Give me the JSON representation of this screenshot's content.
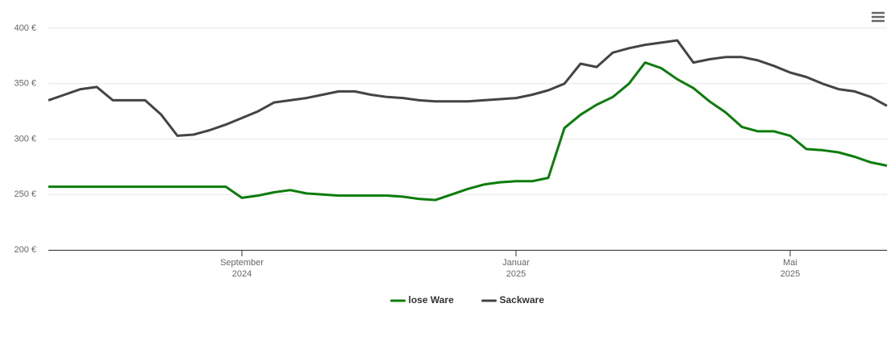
{
  "chart_data": {
    "type": "line",
    "categories": [
      null,
      null,
      null,
      null,
      null,
      null,
      null,
      null,
      null,
      null,
      null,
      null,
      "September 2024",
      null,
      null,
      null,
      null,
      null,
      null,
      null,
      null,
      null,
      null,
      null,
      null,
      null,
      null,
      null,
      null,
      "Januar 2025",
      null,
      null,
      null,
      null,
      null,
      null,
      null,
      null,
      null,
      null,
      null,
      null,
      null,
      null,
      null,
      null,
      "Mai 2025",
      null,
      null,
      null,
      null,
      null,
      null
    ],
    "series": [
      {
        "name": "lose Ware",
        "color": "#0c7c0c",
        "values": [
          257,
          257,
          257,
          257,
          257,
          257,
          257,
          257,
          257,
          257,
          257,
          257,
          247,
          249,
          252,
          254,
          251,
          250,
          249,
          249,
          249,
          249,
          248,
          246,
          245,
          250,
          255,
          259,
          261,
          262,
          262,
          265,
          310,
          322,
          331,
          338,
          350,
          369,
          364,
          354,
          346,
          334,
          324,
          311,
          307,
          307,
          303,
          291,
          290,
          288,
          284,
          279,
          276
        ]
      },
      {
        "name": "Sackware",
        "color": "#434348",
        "values": [
          335,
          340,
          345,
          347,
          335,
          335,
          335,
          322,
          303,
          304,
          308,
          313,
          319,
          325,
          333,
          335,
          337,
          340,
          343,
          343,
          340,
          338,
          337,
          335,
          334,
          334,
          334,
          335,
          336,
          337,
          340,
          344,
          350,
          368,
          365,
          378,
          382,
          385,
          387,
          389,
          369,
          372,
          374,
          374,
          371,
          366,
          360,
          356,
          350,
          345,
          343,
          338,
          330
        ]
      }
    ],
    "ylim": [
      200,
      400
    ],
    "yticks": [
      {
        "value": 200,
        "label": "200 €"
      },
      {
        "value": 250,
        "label": "250 €"
      },
      {
        "value": 300,
        "label": "300 €"
      },
      {
        "value": 350,
        "label": "350 €"
      },
      {
        "value": 400,
        "label": "400 €"
      }
    ],
    "grid": true,
    "legend": "bottom"
  }
}
